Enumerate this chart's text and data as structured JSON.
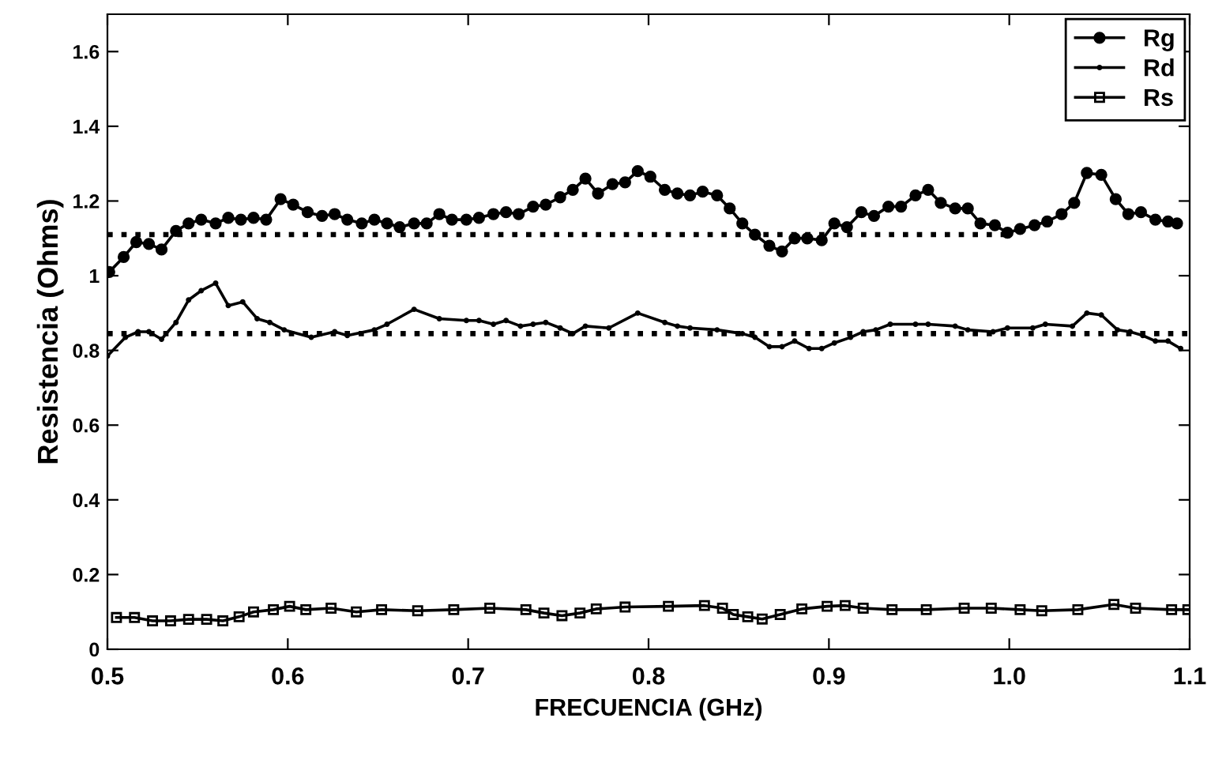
{
  "chart_data": {
    "type": "line",
    "xlabel": "FRECUENCIA (GHz)",
    "ylabel": "Resistencia (Ohms)",
    "xlim": [
      0.5,
      1.1
    ],
    "ylim": [
      0,
      1.7
    ],
    "xticks": [
      0.5,
      0.6,
      0.7,
      0.8,
      0.9,
      {
        "value": 1.0,
        "label": "1.0"
      },
      1.1
    ],
    "yticks": [
      0,
      0.2,
      0.4,
      0.6,
      0.8,
      1,
      1.2,
      1.4,
      1.6
    ],
    "grid": false,
    "legend": "top right",
    "series": [
      {
        "name": "Rg",
        "color": "#000000",
        "marker": "circle",
        "line_style": "solid",
        "x": [
          0.501,
          0.509,
          0.516,
          0.523,
          0.53,
          0.538,
          0.545,
          0.552,
          0.56,
          0.567,
          0.574,
          0.581,
          0.588,
          0.596,
          0.603,
          0.611,
          0.619,
          0.626,
          0.633,
          0.641,
          0.648,
          0.655,
          0.662,
          0.67,
          0.677,
          0.684,
          0.691,
          0.699,
          0.706,
          0.714,
          0.721,
          0.728,
          0.736,
          0.743,
          0.751,
          0.758,
          0.765,
          0.772,
          0.78,
          0.787,
          0.794,
          0.801,
          0.809,
          0.816,
          0.823,
          0.83,
          0.838,
          0.845,
          0.852,
          0.859,
          0.867,
          0.874,
          0.881,
          0.888,
          0.896,
          0.903,
          0.91,
          0.918,
          0.925,
          0.933,
          0.94,
          0.948,
          0.955,
          0.962,
          0.97,
          0.977,
          0.984,
          0.992,
          0.999,
          1.006,
          1.014,
          1.021,
          1.029,
          1.036,
          1.043,
          1.051,
          1.059,
          1.066,
          1.073,
          1.081,
          1.088,
          1.093
        ],
        "values": [
          1.01,
          1.05,
          1.09,
          1.085,
          1.07,
          1.12,
          1.14,
          1.15,
          1.14,
          1.155,
          1.15,
          1.155,
          1.15,
          1.205,
          1.19,
          1.17,
          1.16,
          1.165,
          1.15,
          1.14,
          1.15,
          1.14,
          1.13,
          1.14,
          1.14,
          1.165,
          1.15,
          1.15,
          1.155,
          1.165,
          1.17,
          1.165,
          1.185,
          1.19,
          1.21,
          1.23,
          1.26,
          1.22,
          1.245,
          1.25,
          1.28,
          1.265,
          1.23,
          1.22,
          1.215,
          1.225,
          1.215,
          1.18,
          1.14,
          1.11,
          1.08,
          1.065,
          1.1,
          1.1,
          1.095,
          1.14,
          1.13,
          1.17,
          1.16,
          1.185,
          1.185,
          1.215,
          1.23,
          1.195,
          1.18,
          1.18,
          1.14,
          1.135,
          1.115,
          1.125,
          1.135,
          1.145,
          1.165,
          1.195,
          1.275,
          1.27,
          1.205,
          1.165,
          1.17,
          1.15,
          1.145,
          1.14
        ]
      },
      {
        "name": "Rd",
        "color": "#000000",
        "marker": "point",
        "line_style": "solid",
        "x": [
          0.5,
          0.51,
          0.517,
          0.523,
          0.53,
          0.538,
          0.545,
          0.552,
          0.56,
          0.567,
          0.575,
          0.583,
          0.59,
          0.598,
          0.613,
          0.626,
          0.633,
          0.648,
          0.655,
          0.67,
          0.684,
          0.699,
          0.706,
          0.714,
          0.721,
          0.729,
          0.736,
          0.743,
          0.751,
          0.758,
          0.765,
          0.778,
          0.794,
          0.809,
          0.816,
          0.823,
          0.838,
          0.852,
          0.859,
          0.867,
          0.874,
          0.881,
          0.889,
          0.896,
          0.903,
          0.912,
          0.919,
          0.926,
          0.934,
          0.948,
          0.955,
          0.97,
          0.977,
          0.991,
          0.999,
          1.013,
          1.02,
          1.035,
          1.043,
          1.051,
          1.06,
          1.067,
          1.074,
          1.081,
          1.088,
          1.095
        ],
        "values": [
          0.785,
          0.835,
          0.85,
          0.85,
          0.83,
          0.875,
          0.935,
          0.96,
          0.98,
          0.92,
          0.93,
          0.885,
          0.875,
          0.855,
          0.835,
          0.85,
          0.84,
          0.855,
          0.87,
          0.91,
          0.885,
          0.88,
          0.88,
          0.87,
          0.88,
          0.865,
          0.87,
          0.875,
          0.86,
          0.845,
          0.865,
          0.86,
          0.9,
          0.875,
          0.865,
          0.86,
          0.855,
          0.845,
          0.835,
          0.81,
          0.81,
          0.825,
          0.805,
          0.805,
          0.82,
          0.835,
          0.85,
          0.855,
          0.87,
          0.87,
          0.87,
          0.865,
          0.855,
          0.85,
          0.86,
          0.86,
          0.87,
          0.865,
          0.9,
          0.895,
          0.855,
          0.85,
          0.84,
          0.825,
          0.825,
          0.805
        ]
      },
      {
        "name": "Rs",
        "color": "#000000",
        "marker": "square",
        "line_style": "solid",
        "x": [
          0.505,
          0.515,
          0.525,
          0.535,
          0.545,
          0.555,
          0.564,
          0.573,
          0.581,
          0.592,
          0.601,
          0.61,
          0.624,
          0.638,
          0.652,
          0.672,
          0.692,
          0.712,
          0.732,
          0.742,
          0.752,
          0.762,
          0.771,
          0.787,
          0.811,
          0.831,
          0.841,
          0.847,
          0.855,
          0.863,
          0.873,
          0.885,
          0.899,
          0.909,
          0.919,
          0.935,
          0.954,
          0.975,
          0.99,
          1.006,
          1.018,
          1.038,
          1.058,
          1.07,
          1.09,
          1.099
        ],
        "values": [
          0.085,
          0.085,
          0.076,
          0.076,
          0.08,
          0.08,
          0.076,
          0.087,
          0.1,
          0.106,
          0.115,
          0.106,
          0.11,
          0.1,
          0.106,
          0.103,
          0.106,
          0.11,
          0.106,
          0.097,
          0.09,
          0.097,
          0.108,
          0.113,
          0.115,
          0.117,
          0.11,
          0.093,
          0.087,
          0.081,
          0.093,
          0.108,
          0.115,
          0.117,
          0.11,
          0.106,
          0.106,
          0.11,
          0.11,
          0.106,
          0.103,
          0.106,
          0.12,
          0.11,
          0.106,
          0.106
        ]
      },
      {
        "color": "#000000",
        "marker": "none",
        "line_style": "dotted",
        "x": [
          0.5,
          1.0
        ],
        "values": [
          1.11,
          1.11
        ]
      },
      {
        "color": "#000000",
        "marker": "none",
        "line_style": "dotted",
        "x": [
          0.5,
          1.1
        ],
        "values": [
          0.845,
          0.845
        ]
      }
    ]
  }
}
